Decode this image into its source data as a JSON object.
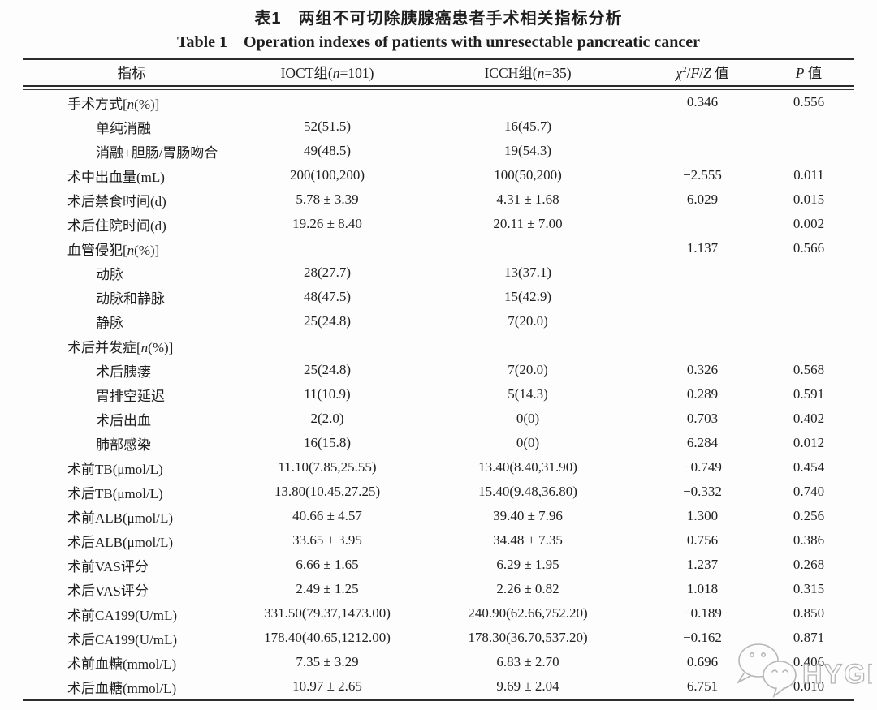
{
  "colors": {
    "background": "#fdfdfd",
    "text": "#1f1f1f",
    "rule": "#2c2c2c",
    "watermark": "#b3b3b3"
  },
  "titles": {
    "zh": "表1　两组不可切除胰腺癌患者手术相关指标分析",
    "en": "Table 1　Operation indexes of patients with unresectable pancreatic cancer"
  },
  "watermark": {
    "text": "HYGEA",
    "icon": "wechat-chat-bubbles-icon"
  },
  "table": {
    "columns": [
      {
        "key": "label",
        "html": "指标"
      },
      {
        "key": "ioct",
        "html": "IOCT组(<i>n</i>=101)"
      },
      {
        "key": "icch",
        "html": "ICCH组(<i>n</i>=35)"
      },
      {
        "key": "stat",
        "html": "<i>χ</i><sup>2</sup>/<i>F</i>/<i>Z</i> 值"
      },
      {
        "key": "p",
        "html": "<i>P</i> 值"
      }
    ],
    "rows": [
      {
        "label": "手术方式[<i>n</i>(%)]",
        "indent": 0,
        "ioct": "",
        "icch": "",
        "stat": "0.346",
        "p": "0.556"
      },
      {
        "label": "单纯消融",
        "indent": 1,
        "ioct": "52(51.5)",
        "icch": "16(45.7)",
        "stat": "",
        "p": ""
      },
      {
        "label": "消融+胆肠/胃肠吻合",
        "indent": 1,
        "ioct": "49(48.5)",
        "icch": "19(54.3)",
        "stat": "",
        "p": ""
      },
      {
        "label": "术中出血量(mL)",
        "indent": 0,
        "ioct": "200(100,200)",
        "icch": "100(50,200)",
        "stat": "−2.555",
        "p": "0.011"
      },
      {
        "label": "术后禁食时间(d)",
        "indent": 0,
        "ioct": "5.78 ± 3.39",
        "icch": "4.31 ± 1.68",
        "stat": "6.029",
        "p": "0.015"
      },
      {
        "label": "术后住院时间(d)",
        "indent": 0,
        "ioct": "19.26 ± 8.40",
        "icch": "20.11 ± 7.00",
        "stat": "",
        "p": "0.002"
      },
      {
        "label": "血管侵犯[<i>n</i>(%)]",
        "indent": 0,
        "ioct": "",
        "icch": "",
        "stat": "1.137",
        "p": "0.566"
      },
      {
        "label": "动脉",
        "indent": 1,
        "ioct": "28(27.7)",
        "icch": "13(37.1)",
        "stat": "",
        "p": ""
      },
      {
        "label": "动脉和静脉",
        "indent": 1,
        "ioct": "48(47.5)",
        "icch": "15(42.9)",
        "stat": "",
        "p": ""
      },
      {
        "label": "静脉",
        "indent": 1,
        "ioct": "25(24.8)",
        "icch": "7(20.0)",
        "stat": "",
        "p": ""
      },
      {
        "label": "术后并发症[<i>n</i>(%)]",
        "indent": 0,
        "ioct": "",
        "icch": "",
        "stat": "",
        "p": ""
      },
      {
        "label": "术后胰瘘",
        "indent": 1,
        "ioct": "25(24.8)",
        "icch": "7(20.0)",
        "stat": "0.326",
        "p": "0.568"
      },
      {
        "label": "胃排空延迟",
        "indent": 1,
        "ioct": "11(10.9)",
        "icch": "5(14.3)",
        "stat": "0.289",
        "p": "0.591"
      },
      {
        "label": "术后出血",
        "indent": 1,
        "ioct": "2(2.0)",
        "icch": "0(0)",
        "stat": "0.703",
        "p": "0.402"
      },
      {
        "label": "肺部感染",
        "indent": 1,
        "ioct": "16(15.8)",
        "icch": "0(0)",
        "stat": "6.284",
        "p": "0.012"
      },
      {
        "label": "术前TB(μmol/L)",
        "indent": 0,
        "ioct": "11.10(7.85,25.55)",
        "icch": "13.40(8.40,31.90)",
        "stat": "−0.749",
        "p": "0.454"
      },
      {
        "label": "术后TB(μmol/L)",
        "indent": 0,
        "ioct": "13.80(10.45,27.25)",
        "icch": "15.40(9.48,36.80)",
        "stat": "−0.332",
        "p": "0.740"
      },
      {
        "label": "术前ALB(μmol/L)",
        "indent": 0,
        "ioct": "40.66 ± 4.57",
        "icch": "39.40 ± 7.96",
        "stat": "1.300",
        "p": "0.256"
      },
      {
        "label": "术后ALB(μmol/L)",
        "indent": 0,
        "ioct": "33.65 ± 3.95",
        "icch": "34.48 ± 7.35",
        "stat": "0.756",
        "p": "0.386"
      },
      {
        "label": "术前VAS评分",
        "indent": 0,
        "ioct": "6.66 ± 1.65",
        "icch": "6.29 ± 1.95",
        "stat": "1.237",
        "p": "0.268"
      },
      {
        "label": "术后VAS评分",
        "indent": 0,
        "ioct": "2.49 ± 1.25",
        "icch": "2.26 ± 0.82",
        "stat": "1.018",
        "p": "0.315"
      },
      {
        "label": "术前CA199(U/mL)",
        "indent": 0,
        "ioct": "331.50(79.37,1473.00)",
        "icch": "240.90(62.66,752.20)",
        "stat": "−0.189",
        "p": "0.850"
      },
      {
        "label": "术后CA199(U/mL)",
        "indent": 0,
        "ioct": "178.40(40.65,1212.00)",
        "icch": "178.30(36.70,537.20)",
        "stat": "−0.162",
        "p": "0.871"
      },
      {
        "label": "术前血糖(mmol/L)",
        "indent": 0,
        "ioct": "7.35 ± 3.29",
        "icch": "6.83 ± 2.70",
        "stat": "0.696",
        "p": "0.406"
      },
      {
        "label": "术后血糖(mmol/L)",
        "indent": 0,
        "ioct": "10.97 ± 2.65",
        "icch": "9.69 ± 2.04",
        "stat": "6.751",
        "p": "0.010"
      }
    ]
  }
}
